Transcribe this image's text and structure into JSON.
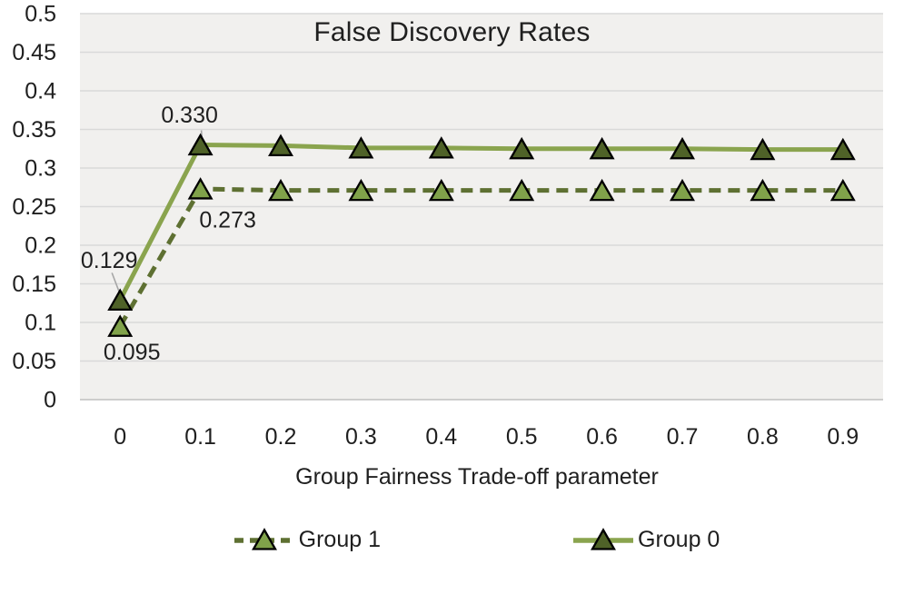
{
  "chart_data": {
    "type": "line",
    "title": "False Discovery Rates",
    "xlabel": "Group Fairness Trade-off parameter",
    "ylabel": "",
    "categories": [
      "0",
      "0.1",
      "0.2",
      "0.3",
      "0.4",
      "0.5",
      "0.6",
      "0.7",
      "0.8",
      "0.9"
    ],
    "ylim": [
      0,
      0.5
    ],
    "ytick_step": 0.05,
    "ytick_labels": [
      "0",
      "0.05",
      "0.1",
      "0.15",
      "0.2",
      "0.25",
      "0.3",
      "0.35",
      "0.4",
      "0.45",
      "0.5"
    ],
    "grid": true,
    "legend_position": "bottom",
    "plot_bg": "#f1f0ee",
    "grid_color": "#d9d9d9",
    "axis_line_color": "#bfbfbf",
    "text_color": "#1f1f1f",
    "leader_line_color": "#a6a6a6",
    "series": [
      {
        "name": "Group 1",
        "line_style": "dashed",
        "line_color": "#5e7032",
        "marker": "triangle",
        "marker_fill": "#80a24a",
        "marker_edge": "#000000",
        "values": [
          0.095,
          0.273,
          0.271,
          0.271,
          0.271,
          0.271,
          0.271,
          0.271,
          0.271,
          0.271
        ],
        "data_labels": [
          {
            "index": 0,
            "text": "0.095",
            "dx": 13,
            "dy": 28
          },
          {
            "index": 1,
            "text": "0.273",
            "dx": 30,
            "dy": 34
          }
        ]
      },
      {
        "name": "Group 0",
        "line_style": "solid",
        "line_color": "#8aa44e",
        "marker": "triangle",
        "marker_fill": "#4f6228",
        "marker_edge": "#000000",
        "values": [
          0.129,
          0.33,
          0.329,
          0.326,
          0.326,
          0.325,
          0.325,
          0.325,
          0.324,
          0.324
        ],
        "data_labels": [
          {
            "index": 0,
            "text": "0.129",
            "dx": -12,
            "dy": -44,
            "leader": [
              [
                -9,
                -30
              ],
              [
                -1,
                -9
              ]
            ]
          },
          {
            "index": 1,
            "text": "0.330",
            "dx": -12,
            "dy": -33,
            "leader": [
              [
                1,
                -16
              ],
              [
                2,
                -4
              ]
            ]
          }
        ]
      }
    ]
  }
}
